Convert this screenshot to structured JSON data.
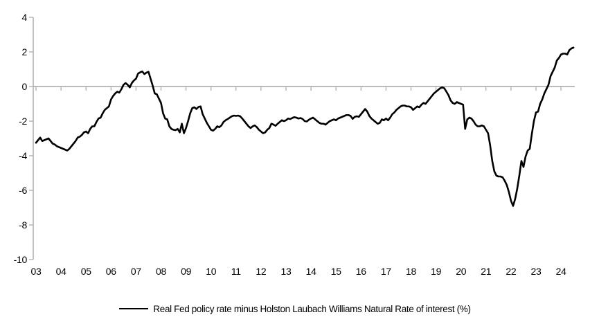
{
  "page": {
    "background": "#ffffff"
  },
  "chart_data": {
    "type": "line",
    "title": "",
    "legend": "Real Fed policy rate minus Holston Laubach Williams Natural Rate of interest (%)",
    "legend_position": "bottom-center",
    "grid": "zero-baseline-only",
    "xlabel": "",
    "ylabel": "",
    "x_start_year": 2003,
    "x_frequency": "monthly",
    "x_end": "2024-07",
    "x_tick_labels": [
      "03",
      "04",
      "05",
      "06",
      "07",
      "08",
      "09",
      "10",
      "11",
      "12",
      "13",
      "14",
      "15",
      "16",
      "17",
      "18",
      "19",
      "20",
      "21",
      "22",
      "23",
      "24"
    ],
    "y_ticks": [
      4,
      2,
      0,
      -2,
      -4,
      -6,
      -8,
      -10
    ],
    "ylim": [
      -10,
      4
    ],
    "colors": {
      "line": "#000000",
      "axis": "#a6a6a6",
      "text": "#000000",
      "background": "#ffffff"
    },
    "series": [
      {
        "name": "Real Fed policy rate minus Holston Laubach Williams Natural Rate of interest (%)",
        "values": [
          -3.25,
          -3.1,
          -2.95,
          -3.15,
          -3.1,
          -3.05,
          -3.0,
          -3.15,
          -3.3,
          -3.35,
          -3.45,
          -3.5,
          -3.55,
          -3.6,
          -3.65,
          -3.7,
          -3.6,
          -3.45,
          -3.3,
          -3.15,
          -2.95,
          -2.9,
          -2.8,
          -2.65,
          -2.6,
          -2.7,
          -2.45,
          -2.3,
          -2.3,
          -2.05,
          -1.85,
          -1.8,
          -1.55,
          -1.35,
          -1.25,
          -1.15,
          -0.75,
          -0.55,
          -0.4,
          -0.3,
          -0.35,
          -0.15,
          0.1,
          0.2,
          0.1,
          -0.05,
          0.2,
          0.35,
          0.45,
          0.75,
          0.82,
          0.87,
          0.72,
          0.8,
          0.85,
          0.45,
          0.05,
          -0.4,
          -0.45,
          -0.7,
          -0.95,
          -1.55,
          -1.85,
          -1.9,
          -2.3,
          -2.45,
          -2.5,
          -2.52,
          -2.45,
          -2.65,
          -2.15,
          -2.7,
          -2.4,
          -2.0,
          -1.55,
          -1.25,
          -1.2,
          -1.3,
          -1.18,
          -1.15,
          -1.6,
          -1.85,
          -2.1,
          -2.3,
          -2.5,
          -2.55,
          -2.45,
          -2.3,
          -2.35,
          -2.25,
          -2.05,
          -1.95,
          -1.88,
          -1.8,
          -1.72,
          -1.68,
          -1.7,
          -1.68,
          -1.72,
          -1.85,
          -2.0,
          -2.15,
          -2.3,
          -2.4,
          -2.3,
          -2.25,
          -2.35,
          -2.5,
          -2.6,
          -2.7,
          -2.65,
          -2.5,
          -2.4,
          -2.15,
          -2.2,
          -2.27,
          -2.15,
          -2.05,
          -1.95,
          -2.0,
          -1.95,
          -1.85,
          -1.88,
          -1.82,
          -1.77,
          -1.8,
          -1.85,
          -1.82,
          -1.88,
          -2.0,
          -2.02,
          -1.92,
          -1.85,
          -1.8,
          -1.9,
          -2.0,
          -2.1,
          -2.15,
          -2.15,
          -2.2,
          -2.1,
          -2.0,
          -1.95,
          -1.9,
          -1.95,
          -1.85,
          -1.8,
          -1.75,
          -1.7,
          -1.65,
          -1.65,
          -1.7,
          -1.87,
          -1.75,
          -1.72,
          -1.75,
          -1.6,
          -1.45,
          -1.3,
          -1.45,
          -1.7,
          -1.85,
          -1.95,
          -2.05,
          -2.15,
          -2.1,
          -1.9,
          -1.95,
          -1.85,
          -1.95,
          -1.8,
          -1.6,
          -1.5,
          -1.35,
          -1.25,
          -1.15,
          -1.1,
          -1.1,
          -1.15,
          -1.15,
          -1.2,
          -1.35,
          -1.25,
          -1.15,
          -1.2,
          -1.05,
          -0.95,
          -1.0,
          -0.85,
          -0.7,
          -0.55,
          -0.4,
          -0.3,
          -0.2,
          -0.1,
          -0.05,
          -0.1,
          -0.3,
          -0.5,
          -0.8,
          -0.95,
          -1.0,
          -0.9,
          -0.95,
          -1.0,
          -1.05,
          -2.45,
          -1.9,
          -1.8,
          -1.85,
          -2.0,
          -2.2,
          -2.3,
          -2.3,
          -2.25,
          -2.3,
          -2.5,
          -2.7,
          -3.4,
          -4.3,
          -4.9,
          -5.15,
          -5.2,
          -5.2,
          -5.25,
          -5.45,
          -5.7,
          -6.1,
          -6.6,
          -6.9,
          -6.5,
          -5.9,
          -5.15,
          -4.3,
          -4.65,
          -4.05,
          -3.7,
          -3.6,
          -2.75,
          -2.0,
          -1.5,
          -1.45,
          -1.0,
          -0.75,
          -0.4,
          -0.15,
          0.1,
          0.6,
          0.85,
          1.1,
          1.5,
          1.65,
          1.85,
          1.9,
          1.9,
          1.85,
          2.1,
          2.2,
          2.25
        ]
      }
    ]
  }
}
